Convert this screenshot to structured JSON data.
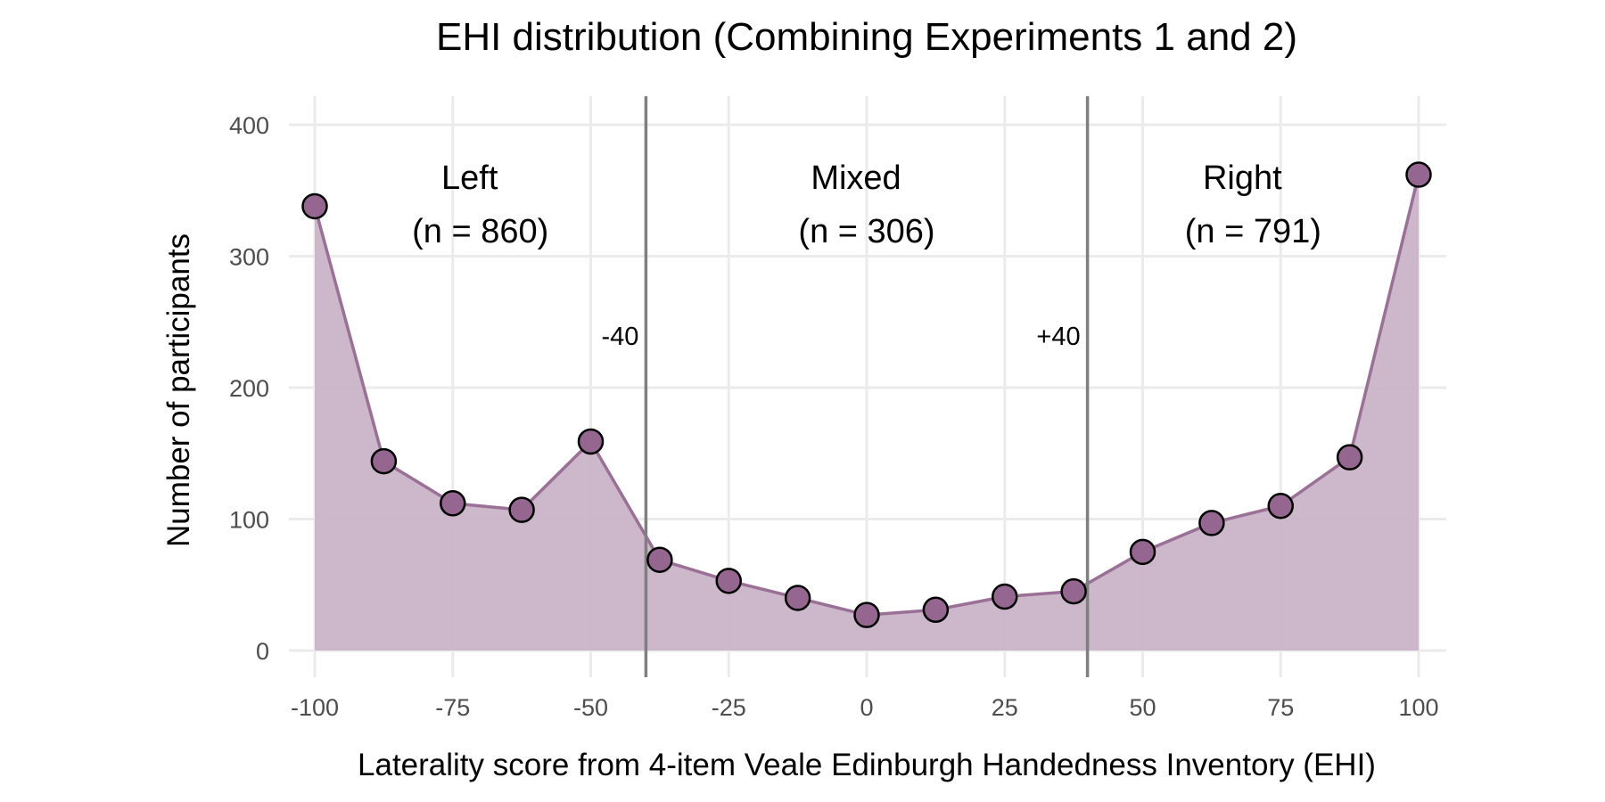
{
  "chart_data": {
    "type": "area",
    "title": "EHI distribution (Combining Experiments 1 and 2)",
    "xlabel": "Laterality score from 4-item Veale Edinburgh Handedness Inventory (EHI)",
    "ylabel": "Number of participants",
    "xlim": [
      -100,
      100
    ],
    "ylim": [
      0,
      400
    ],
    "x_ticks": [
      -100,
      -75,
      -50,
      -25,
      0,
      25,
      50,
      75,
      100
    ],
    "x_tick_labels": [
      "-100",
      "-75",
      "-50",
      "-25",
      "0",
      "25",
      "50",
      "75",
      "100"
    ],
    "y_ticks": [
      0,
      100,
      200,
      300,
      400
    ],
    "y_tick_labels": [
      "0",
      "100",
      "200",
      "300",
      "400"
    ],
    "grid": true,
    "x": [
      -100,
      -87.5,
      -75,
      -62.5,
      -50,
      -37.5,
      -25,
      -12.5,
      0,
      12.5,
      25,
      37.5,
      50,
      62.5,
      75,
      87.5,
      100
    ],
    "values": [
      338,
      144,
      112,
      107,
      159,
      69,
      53,
      40,
      27,
      31,
      41,
      45,
      75,
      97,
      110,
      147,
      362
    ],
    "colors": {
      "fill": "#c9b3c8",
      "line": "#9a7096",
      "point": "#956690",
      "cutoff": "#7f7f7f"
    },
    "cutoffs": [
      {
        "x": -40,
        "label": "-40"
      },
      {
        "x": 40,
        "label": "+40"
      }
    ],
    "regions": [
      {
        "name": "Left",
        "n_label": "(n = 860)"
      },
      {
        "name": "Mixed",
        "n_label": "(n = 306)"
      },
      {
        "name": "Right",
        "n_label": "(n = 791)"
      }
    ]
  }
}
